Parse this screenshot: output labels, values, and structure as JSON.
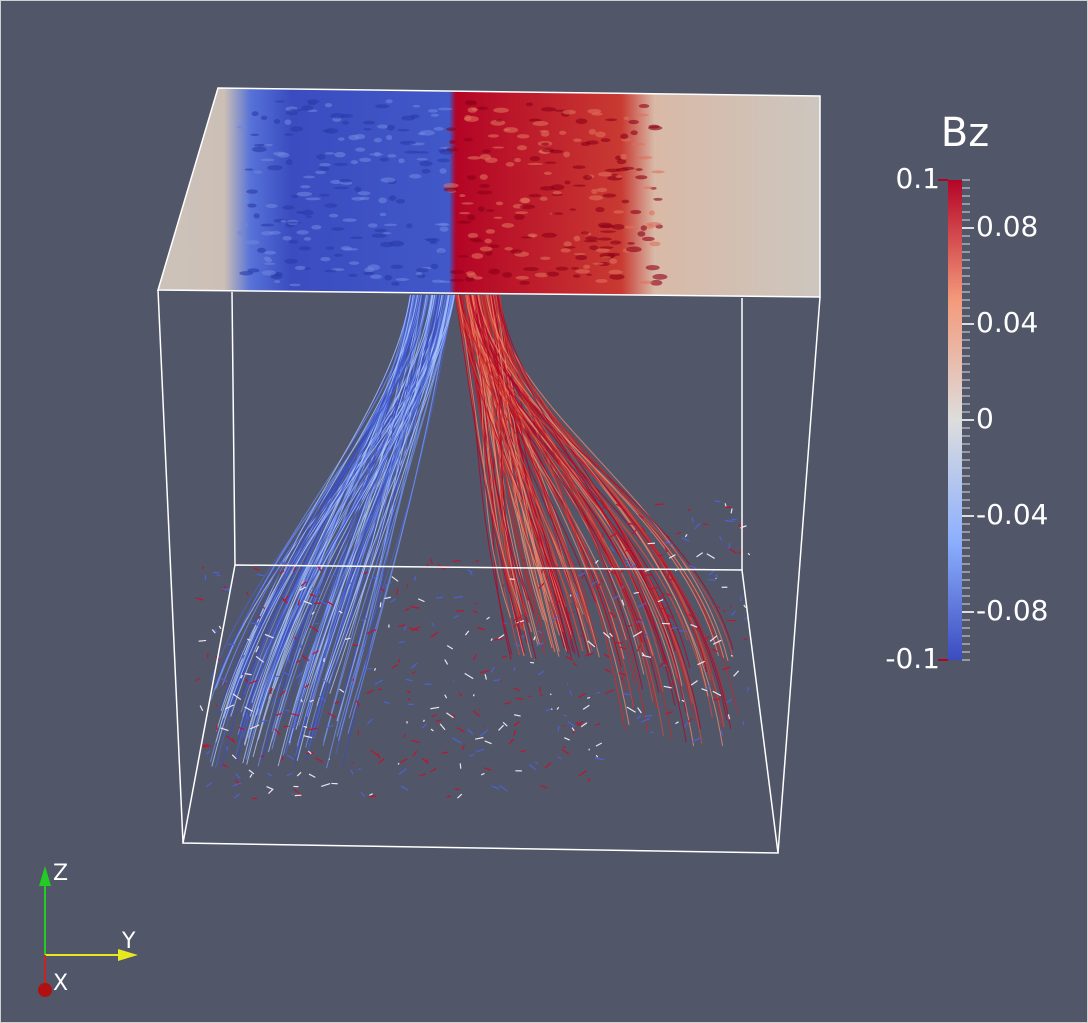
{
  "colorbar": {
    "title": "Bz",
    "range": [
      -0.1,
      0.1
    ],
    "ticks": [
      0.1,
      0.08,
      0.04,
      0,
      -0.04,
      -0.08,
      -0.1
    ]
  },
  "orientation_axes": {
    "z": "Z",
    "y": "Y",
    "x": "X"
  }
}
